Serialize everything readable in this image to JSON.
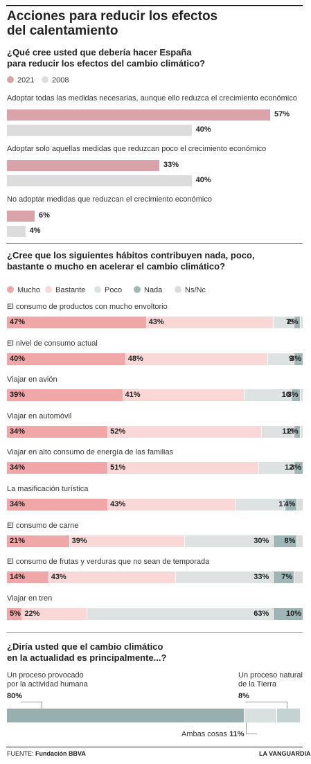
{
  "title": "Acciones para reducir los efectos\ndel calentamiento",
  "colors": {
    "y2021": "#d9a3a9",
    "y2008": "#dcdcdc",
    "mucho": "#f1a7a7",
    "bastante": "#fbd8d8",
    "poco": "#dde3e3",
    "nada": "#9fb6b6",
    "nsnc": "#dcdcdc",
    "s3_main": "#97afaf",
    "s3_natural": "#c5d2d2",
    "s3_ambas": "#d8e0e0"
  },
  "chart_data": [
    {
      "type": "bar",
      "question": "¿Qué cree usted que debería hacer España\npara reducir los efectos del cambio climático?",
      "legend": [
        "2021",
        "2008"
      ],
      "categories": [
        "Adoptar todas las medidas necesarias, aunque ello reduzca el crecimiento económico",
        "Adoptar solo aquellas medidas que reduzcan poco el crecimiento económico",
        "No adoptar medidas que reduzcan el crecimiento económico"
      ],
      "series": [
        {
          "name": "2021",
          "values": [
            57,
            33,
            6
          ]
        },
        {
          "name": "2008",
          "values": [
            40,
            40,
            4
          ]
        }
      ],
      "unit": "%"
    },
    {
      "type": "bar",
      "stacked": true,
      "question": "¿Cree que los siguientes hábitos contribuyen nada, poco,\nbastante o mucho en acelerar el cambio climático?",
      "legend": [
        "Mucho",
        "Bastante",
        "Poco",
        "Nada",
        "Ns/Nc"
      ],
      "categories": [
        "El consumo de productos con mucho envoltorio",
        "El nivel de consumo actual",
        "Viajar en avión",
        "Viajar en automóvil",
        "Viajar en alto consumo de energía de las familias",
        "La masificación turística",
        "El consumo de carne",
        "El consumo de frutas y verduras que no sean de temporada",
        "Viajar en tren"
      ],
      "series": [
        {
          "name": "Mucho",
          "values": [
            47,
            40,
            39,
            34,
            34,
            34,
            21,
            14,
            5
          ]
        },
        {
          "name": "Bastante",
          "values": [
            43,
            48,
            41,
            52,
            51,
            43,
            39,
            43,
            22
          ]
        },
        {
          "name": "Poco",
          "values": [
            7,
            9,
            16,
            11,
            12,
            17,
            30,
            33,
            63
          ]
        },
        {
          "name": "Nada",
          "values": [
            2,
            3,
            3,
            2,
            3,
            4,
            8,
            7,
            10
          ]
        },
        {
          "name": "Ns/Nc",
          "values": [
            1,
            0,
            1,
            1,
            0,
            2,
            2,
            3,
            0
          ]
        }
      ],
      "unit": "%"
    },
    {
      "type": "bar",
      "stacked": true,
      "question": "¿Diría usted que el cambio climático\nen la actualidad es principalmente...?",
      "segments": [
        {
          "label": "Un proceso provocado\npor la actividad humana",
          "value": 80,
          "display": "80%"
        },
        {
          "label": "Ambas cosas",
          "value": 11,
          "display": "11%"
        },
        {
          "label": "Un proceso natural\nde la Tierra",
          "value": 8,
          "display": "8%"
        }
      ],
      "unit": "%"
    }
  ],
  "footer": {
    "source_label": "FUENTE:",
    "source": "Fundación BBVA",
    "brand": "LA VANGUARDIA"
  }
}
